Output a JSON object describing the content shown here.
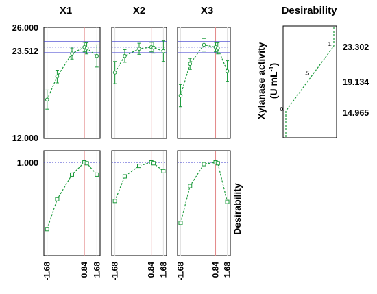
{
  "chart_data": [
    {
      "type": "line",
      "panel": "prediction-profiles",
      "factors": [
        "X1",
        "X2",
        "X3"
      ],
      "x": [
        -1.68,
        -1,
        0,
        0.84,
        1,
        1.68
      ],
      "x_ticks": [
        -1.68,
        0.84,
        1.68
      ],
      "x_tick_labels": [
        "-1.68",
        "0.84",
        "1.68"
      ],
      "optimum": 0.84,
      "ylim": [
        12.0,
        26.0
      ],
      "y_ticks": [
        26.0,
        23.512,
        12.0
      ],
      "y_tick_labels": [
        "26.000",
        "23.512",
        "12.000"
      ],
      "predicted_value": 23.512,
      "ci_band": [
        22.8,
        24.2
      ],
      "series": [
        {
          "factor": "X1",
          "values": [
            16.9,
            19.8,
            22.7,
            23.512,
            23.35,
            22.4
          ],
          "errors": [
            1.2,
            0.8,
            0.7,
            0.6,
            0.7,
            1.4
          ]
        },
        {
          "factor": "X2",
          "values": [
            20.3,
            22.4,
            23.3,
            23.512,
            23.45,
            23.0
          ],
          "errors": [
            1.4,
            0.8,
            0.7,
            0.6,
            0.7,
            1.3
          ]
        },
        {
          "factor": "X3",
          "values": [
            17.4,
            21.4,
            23.8,
            23.512,
            23.35,
            20.5
          ],
          "errors": [
            1.4,
            0.7,
            0.8,
            0.6,
            0.7,
            1.3
          ]
        }
      ]
    },
    {
      "type": "line",
      "panel": "desirability-profiles",
      "ylabel": "Desirability",
      "y_ticks": [
        1.0
      ],
      "y_tick_labels": [
        "1.000"
      ],
      "ylim": [
        0.0,
        1.0
      ],
      "x": [
        -1.68,
        -1,
        0,
        0.84,
        1,
        1.68
      ],
      "series": [
        {
          "factor": "X1",
          "values": [
            0.24,
            0.58,
            0.86,
            1.0,
            0.99,
            0.86
          ]
        },
        {
          "factor": "X2",
          "values": [
            0.56,
            0.84,
            0.96,
            1.0,
            0.99,
            0.9
          ]
        },
        {
          "factor": "X3",
          "values": [
            0.31,
            0.73,
            0.98,
            1.0,
            0.99,
            0.55
          ]
        }
      ]
    },
    {
      "type": "line",
      "panel": "desirability-function",
      "title": "Desirability",
      "ylabel": "Xylanase activity",
      "ylabel_units": "(U mL",
      "ylabel_units_sup": "-1",
      "ylabel_units_close": ")",
      "y_ticks": [
        23.302,
        19.134,
        14.965
      ],
      "y_tick_labels": [
        "23.302",
        "19.134",
        "14.965"
      ],
      "points": [
        {
          "label": "0.",
          "desirability": 0.0,
          "response": 14.965
        },
        {
          "label": ".5",
          "desirability": 0.5,
          "response": 19.134
        },
        {
          "label": "1.",
          "desirability": 1.0,
          "response": 23.302
        }
      ]
    }
  ]
}
